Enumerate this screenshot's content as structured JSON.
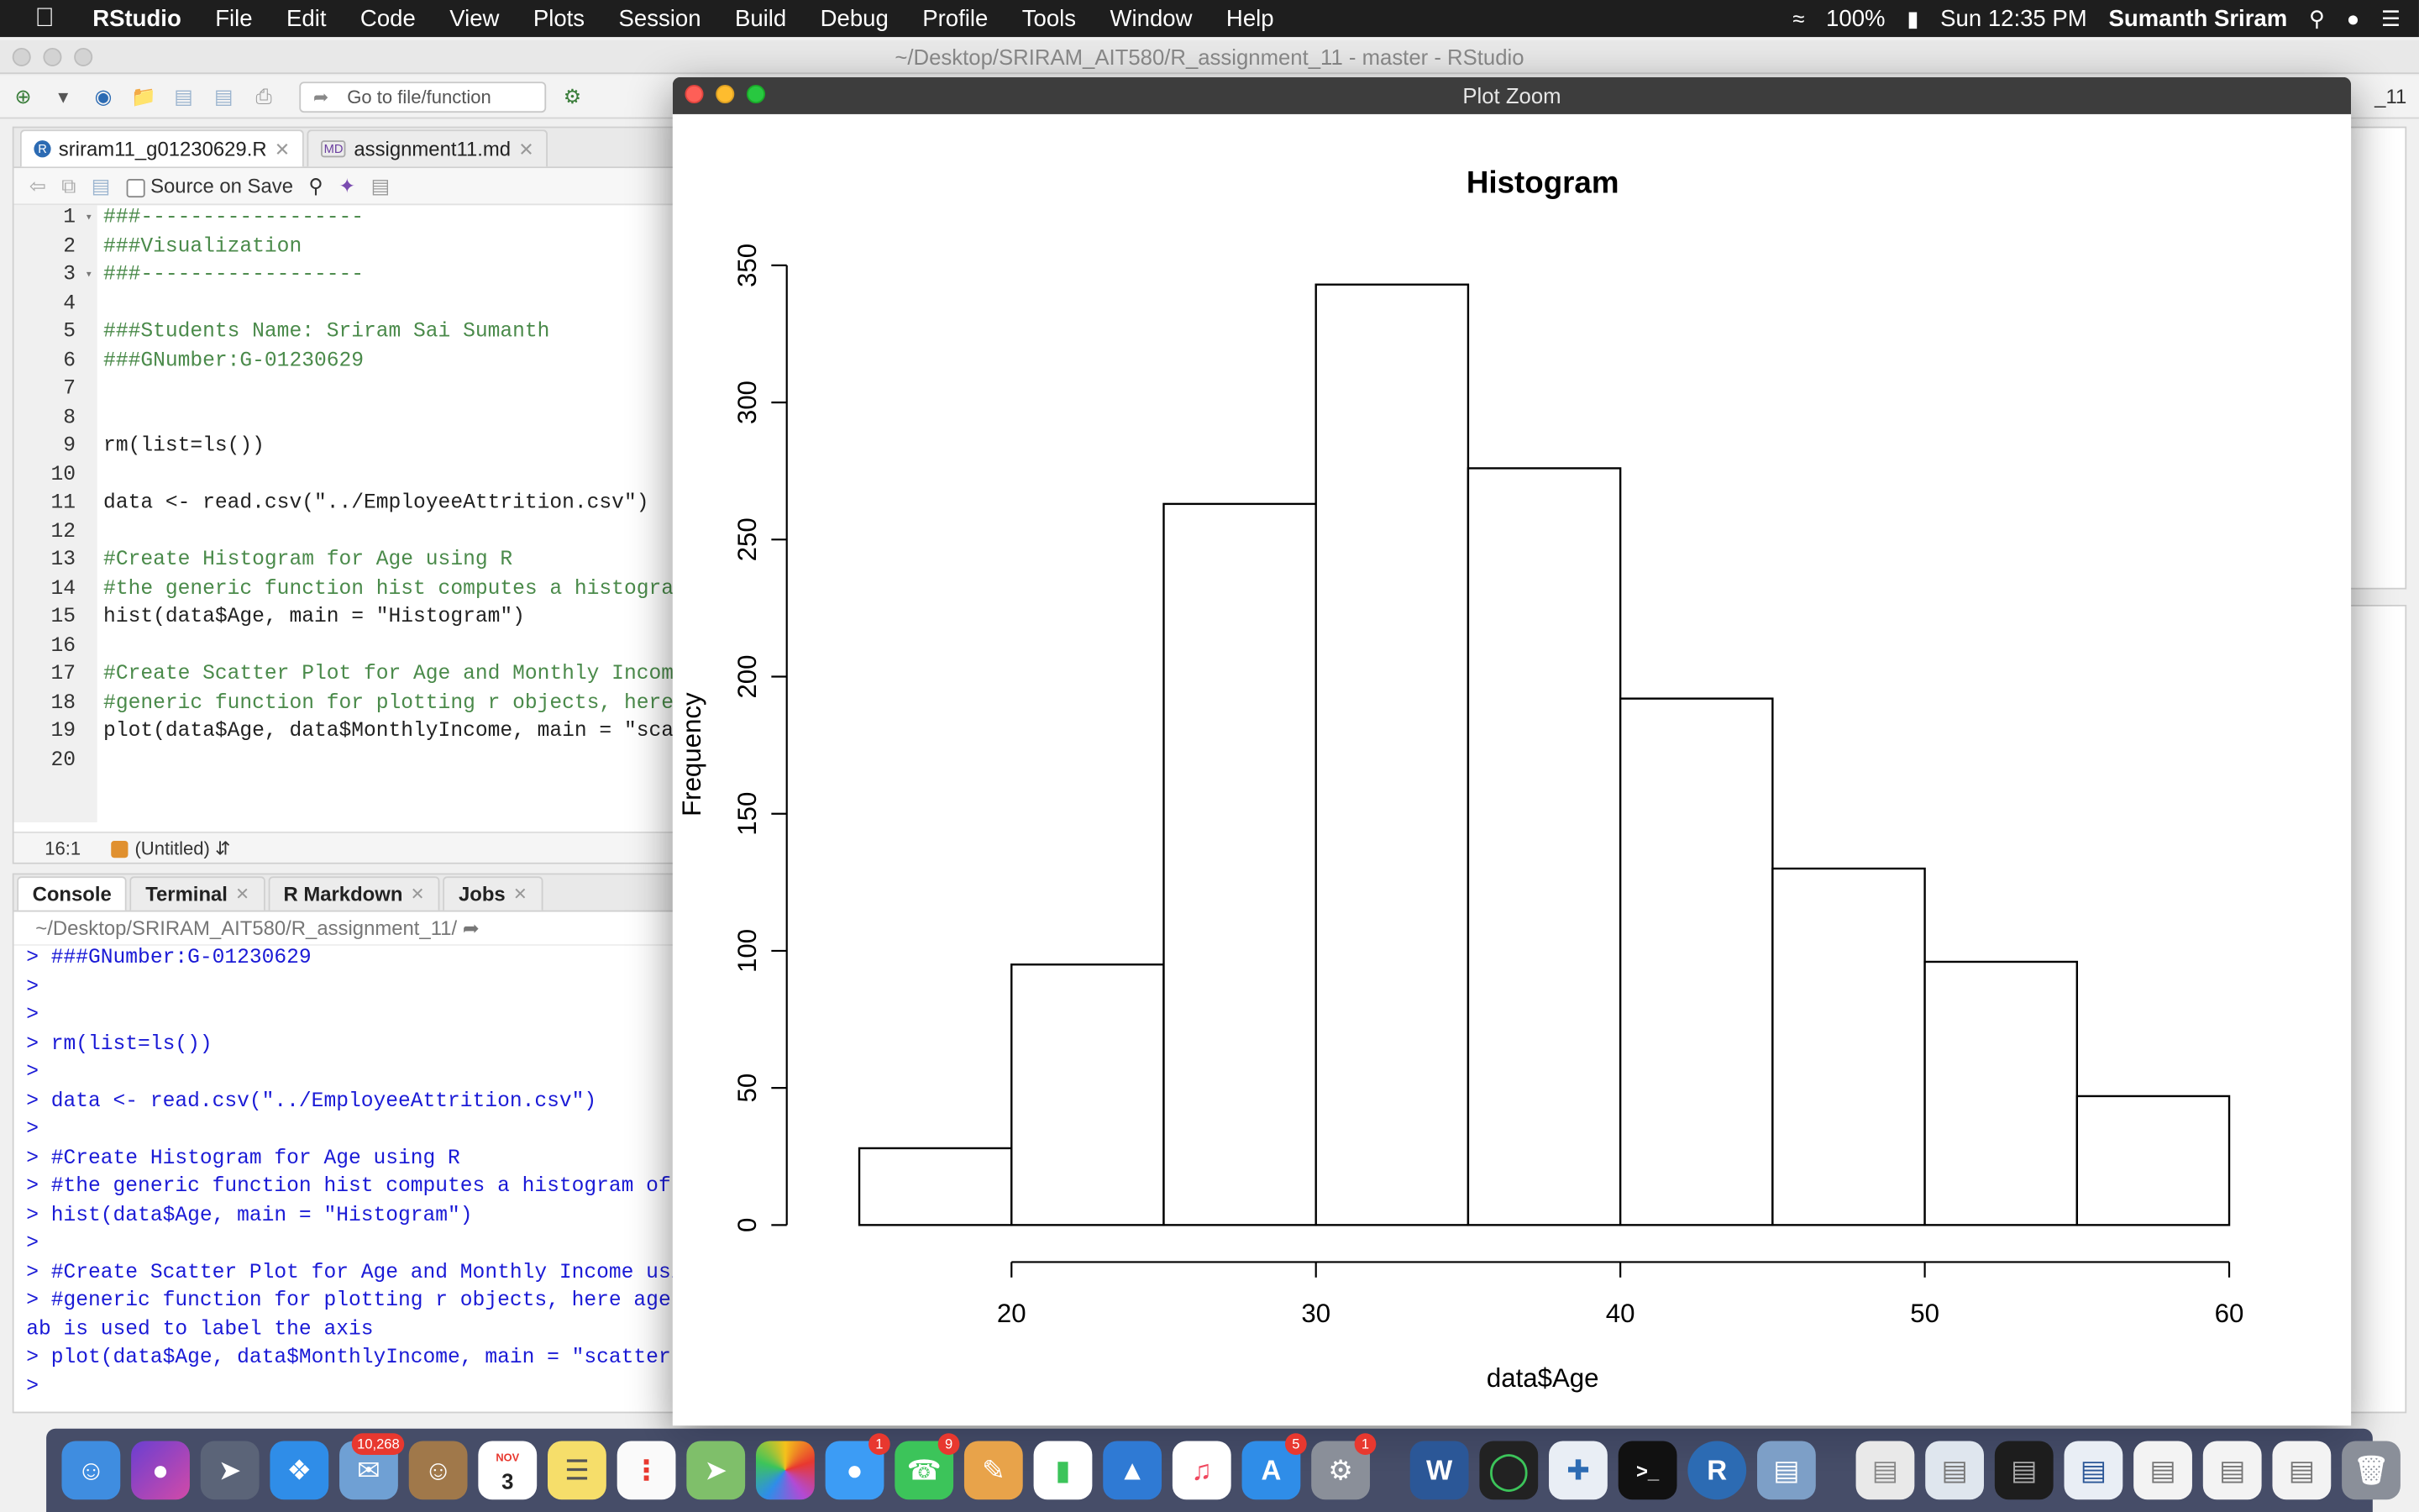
{
  "menubar": {
    "app": "RStudio",
    "items": [
      "File",
      "Edit",
      "Code",
      "View",
      "Plots",
      "Session",
      "Build",
      "Debug",
      "Profile",
      "Tools",
      "Window",
      "Help"
    ],
    "battery": "100%",
    "clock": "Sun 12:35 PM",
    "user": "Sumanth Sriram"
  },
  "rstudio": {
    "window_title": "~/Desktop/SRIRAM_AIT580/R_assignment_11 - master - RStudio",
    "goto_placeholder": "Go to file/function",
    "project_label": "_11"
  },
  "editor": {
    "tabs": [
      {
        "label": "sriram11_g01230629.R",
        "badge": "R"
      },
      {
        "label": "assignment11.md",
        "badge": "MD"
      }
    ],
    "source_on_save": "Source on Save",
    "lines": [
      {
        "n": "1",
        "fold": "▾",
        "text": "###------------------",
        "kind": "comment"
      },
      {
        "n": "2",
        "fold": "",
        "text": "###Visualization",
        "kind": "comment"
      },
      {
        "n": "3",
        "fold": "▾",
        "text": "###------------------",
        "kind": "comment"
      },
      {
        "n": "4",
        "fold": "",
        "text": "",
        "kind": "plain"
      },
      {
        "n": "5",
        "fold": "",
        "text": "###Students Name: Sriram Sai Sumanth",
        "kind": "comment"
      },
      {
        "n": "6",
        "fold": "",
        "text": "###GNumber:G-01230629",
        "kind": "comment"
      },
      {
        "n": "7",
        "fold": "",
        "text": "",
        "kind": "plain"
      },
      {
        "n": "8",
        "fold": "",
        "text": "",
        "kind": "plain"
      },
      {
        "n": "9",
        "fold": "",
        "text": "rm(list=ls())",
        "kind": "plain"
      },
      {
        "n": "10",
        "fold": "",
        "text": "",
        "kind": "plain"
      },
      {
        "n": "11",
        "fold": "",
        "text": "data <- read.csv(\"../EmployeeAttrition.csv\")",
        "kind": "plain"
      },
      {
        "n": "12",
        "fold": "",
        "text": "",
        "kind": "plain"
      },
      {
        "n": "13",
        "fold": "",
        "text": "#Create Histogram for Age using R",
        "kind": "comment"
      },
      {
        "n": "14",
        "fold": "",
        "text": "#the generic function hist computes a histogram",
        "kind": "comment"
      },
      {
        "n": "15",
        "fold": "",
        "text": "hist(data$Age, main = \"Histogram\")",
        "kind": "plain"
      },
      {
        "n": "16",
        "fold": "",
        "text": "",
        "kind": "plain"
      },
      {
        "n": "17",
        "fold": "",
        "text": "#Create Scatter Plot for Age and Monthly Income",
        "kind": "comment"
      },
      {
        "n": "18",
        "fold": "",
        "text": "#generic function for plotting r objects, here",
        "kind": "comment"
      },
      {
        "n": "19",
        "fold": "",
        "text": "plot(data$Age, data$MonthlyIncome, main = \"scat",
        "kind": "plain"
      },
      {
        "n": "20",
        "fold": "",
        "text": "",
        "kind": "plain"
      }
    ],
    "cursor_pos": "16:1",
    "scope": "(Untitled)"
  },
  "console": {
    "tabs": [
      "Console",
      "Terminal",
      "R Markdown",
      "Jobs"
    ],
    "path": "~/Desktop/SRIRAM_AIT580/R_assignment_11/",
    "lines": [
      "> ###GNumber:G-01230629",
      ">",
      ">",
      "> rm(list=ls())",
      ">",
      "> data <- read.csv(\"../EmployeeAttrition.csv\")",
      ">",
      "> #Create Histogram for Age using R",
      "> #the generic function hist computes a histogram of t",
      "> hist(data$Age, main = \"Histogram\")",
      ">",
      "> #Create Scatter Plot for Age and Monthly Income usin",
      "> #generic function for plotting r objects, here age f",
      "ab is used to label the axis",
      "> plot(data$Age, data$MonthlyIncome, main = \"scatter p",
      "> "
    ]
  },
  "zoom_window": {
    "title": "Plot Zoom"
  },
  "chart_data": {
    "type": "bar",
    "title": "Histogram",
    "xlabel": "data$Age",
    "ylabel": "Frequency",
    "bins": [
      {
        "from": 15,
        "to": 20,
        "count": 28
      },
      {
        "from": 20,
        "to": 25,
        "count": 95
      },
      {
        "from": 25,
        "to": 30,
        "count": 263
      },
      {
        "from": 30,
        "to": 35,
        "count": 343
      },
      {
        "from": 35,
        "to": 40,
        "count": 276
      },
      {
        "from": 40,
        "to": 45,
        "count": 192
      },
      {
        "from": 45,
        "to": 50,
        "count": 130
      },
      {
        "from": 50,
        "to": 55,
        "count": 96
      },
      {
        "from": 55,
        "to": 60,
        "count": 47
      }
    ],
    "xticks": [
      20,
      30,
      40,
      50,
      60
    ],
    "yticks": [
      0,
      50,
      100,
      150,
      200,
      250,
      300,
      350
    ],
    "xlim": [
      15,
      60
    ],
    "ylim": [
      0,
      350
    ],
    "grid": false,
    "bar_fill": "#ffffff",
    "bar_stroke": "#000000"
  },
  "dock": {
    "badges": {
      "mail": "10,268",
      "calendar_month": "NOV",
      "calendar_day": "3",
      "messages": "1",
      "facetime": "9",
      "appstore": "5",
      "prefs": "1"
    }
  }
}
